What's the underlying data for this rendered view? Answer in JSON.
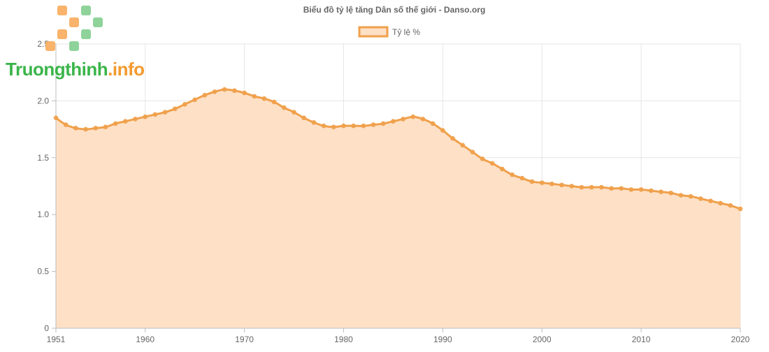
{
  "logo": {
    "brand": "Truongthinh",
    "suffix": ".info",
    "brand_color": "#3bb54a",
    "suffix_color": "#f39a2e",
    "square_colors": [
      "#f9b36b",
      "#8fd39a"
    ]
  },
  "chart_data": {
    "type": "area",
    "title": "Biểu đồ tỷ lệ tăng Dân số thế giới - Danso.org",
    "legend_position": "top",
    "grid": true,
    "x_ticks": [
      "1951",
      "1960",
      "1970",
      "1980",
      "1990",
      "2000",
      "2010",
      "2020"
    ],
    "y_ticks": [
      "0",
      "0.5",
      "1.0",
      "1.5",
      "2.0",
      "2.5"
    ],
    "xlim": [
      1951,
      2020
    ],
    "ylim": [
      0,
      2.5
    ],
    "colors": {
      "line": "#f0a04b",
      "fill": "#fde0c6",
      "point": "#f0a04b"
    },
    "series": [
      {
        "name": "Tỷ lệ %",
        "x": [
          1951,
          1952,
          1953,
          1954,
          1955,
          1956,
          1957,
          1958,
          1959,
          1960,
          1961,
          1962,
          1963,
          1964,
          1965,
          1966,
          1967,
          1968,
          1969,
          1970,
          1971,
          1972,
          1973,
          1974,
          1975,
          1976,
          1977,
          1978,
          1979,
          1980,
          1981,
          1982,
          1983,
          1984,
          1985,
          1986,
          1987,
          1988,
          1989,
          1990,
          1991,
          1992,
          1993,
          1994,
          1995,
          1996,
          1997,
          1998,
          1999,
          2000,
          2001,
          2002,
          2003,
          2004,
          2005,
          2006,
          2007,
          2008,
          2009,
          2010,
          2011,
          2012,
          2013,
          2014,
          2015,
          2016,
          2017,
          2018,
          2019,
          2020
        ],
        "values": [
          1.85,
          1.79,
          1.76,
          1.75,
          1.76,
          1.77,
          1.8,
          1.82,
          1.84,
          1.86,
          1.88,
          1.9,
          1.93,
          1.97,
          2.01,
          2.05,
          2.08,
          2.1,
          2.09,
          2.07,
          2.04,
          2.02,
          1.99,
          1.94,
          1.9,
          1.85,
          1.81,
          1.78,
          1.77,
          1.78,
          1.78,
          1.78,
          1.79,
          1.8,
          1.82,
          1.84,
          1.86,
          1.84,
          1.8,
          1.74,
          1.67,
          1.61,
          1.55,
          1.49,
          1.45,
          1.4,
          1.35,
          1.32,
          1.29,
          1.28,
          1.27,
          1.26,
          1.25,
          1.24,
          1.24,
          1.24,
          1.23,
          1.23,
          1.22,
          1.22,
          1.21,
          1.2,
          1.19,
          1.17,
          1.16,
          1.14,
          1.12,
          1.1,
          1.08,
          1.05
        ]
      }
    ]
  }
}
